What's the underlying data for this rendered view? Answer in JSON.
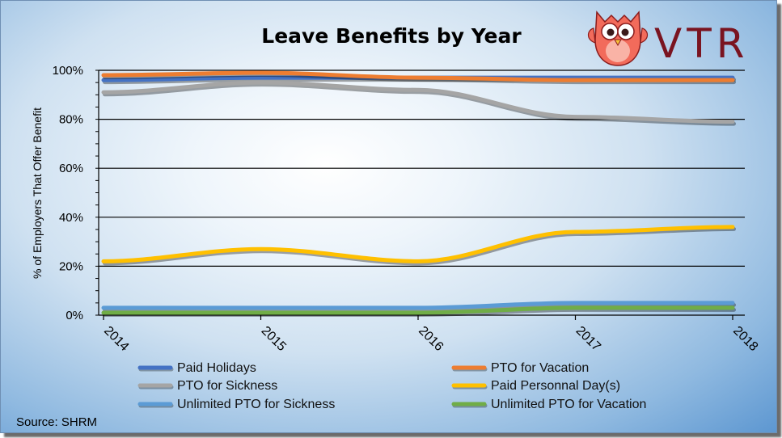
{
  "chart_data": {
    "type": "line",
    "title": "Leave Benefits by Year",
    "ylabel": "% of Employers That Offer Benefit",
    "xlabel": "",
    "x": [
      "2014",
      "2015",
      "2016",
      "2017",
      "2018"
    ],
    "ylim": [
      0,
      100
    ],
    "yticks": [
      "0%",
      "20%",
      "40%",
      "60%",
      "80%",
      "100%"
    ],
    "grid": true,
    "legend_position": "bottom",
    "series": [
      {
        "name": "Paid Holidays",
        "color": "#4472c4",
        "values": [
          96,
          97,
          97,
          97,
          97
        ]
      },
      {
        "name": "PTO for Vacation",
        "color": "#ed7d31",
        "values": [
          98,
          99,
          97,
          96,
          96
        ]
      },
      {
        "name": "PTO for Sickness",
        "color": "#a5a5a5",
        "values": [
          91,
          95,
          92,
          81,
          79
        ]
      },
      {
        "name": "Paid Personnal Day(s)",
        "color": "#ffc000",
        "values": [
          22,
          27,
          22,
          34,
          36
        ]
      },
      {
        "name": "Unlimited PTO for Sickness",
        "color": "#5b9bd5",
        "values": [
          3,
          3,
          3,
          5,
          5
        ]
      },
      {
        "name": "Unlimited PTO for Vacation",
        "color": "#70ad47",
        "values": [
          1,
          1,
          1,
          3,
          3
        ]
      }
    ]
  },
  "source": "Source: SHRM",
  "logo": {
    "text": "VTR",
    "icon": "owl-icon",
    "color": "#7a1420"
  }
}
